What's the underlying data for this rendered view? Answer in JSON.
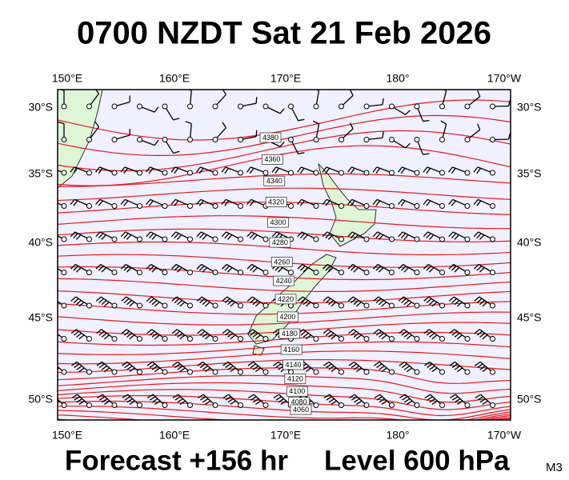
{
  "title": "0700 NZDT Sat 21 Feb 2026",
  "axes": {
    "top": [
      "150°E",
      "160°E",
      "170°E",
      "180°",
      "170°W"
    ],
    "bottom": [
      "150°E",
      "160°E",
      "170°E",
      "180°",
      "170°W"
    ],
    "left": [
      "30°S",
      "35°S",
      "40°S",
      "45°S",
      "50°S"
    ],
    "right": [
      "30°S",
      "35°S",
      "40°S",
      "45°S",
      "50°S"
    ]
  },
  "contour_labels": [
    4380,
    4360,
    4340,
    4320,
    4300,
    4280,
    4260,
    4240,
    4220,
    4200,
    4180,
    4160,
    4140,
    4120,
    4100,
    4080,
    4060
  ],
  "footer": {
    "forecast": "Forecast +156 hr",
    "level": "Level 600 hPa",
    "model": "M3"
  }
}
